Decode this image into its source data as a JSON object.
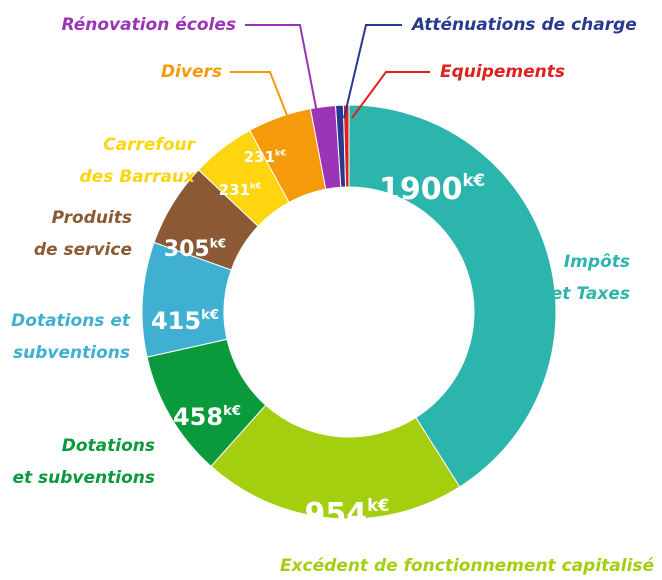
{
  "chart_data": {
    "type": "donut",
    "categories": [
      [
        "Impôts",
        "et Taxes"
      ],
      [
        "Excédent de fonctionnement capitalisé"
      ],
      [
        "Dotations",
        "et subventions"
      ],
      [
        "Dotations et",
        "subventions"
      ],
      [
        "Produits",
        "de service"
      ],
      [
        "Carrefour",
        "des Barraux"
      ],
      [
        "Divers"
      ],
      [
        "Rénovation écoles"
      ],
      [
        "Atténuations de charge"
      ],
      [
        "Equipements"
      ]
    ],
    "values": [
      1900,
      954,
      458,
      415,
      305,
      231,
      231,
      90,
      28,
      20
    ],
    "value_unit": "k€",
    "colors": [
      "#2bb5ad",
      "#a3cf0f",
      "#0a9a3c",
      "#3fb0d2",
      "#8b5a34",
      "#ffd50f",
      "#f59a0a",
      "#9b35b5",
      "#2a3990",
      "#e0201e"
    ]
  }
}
